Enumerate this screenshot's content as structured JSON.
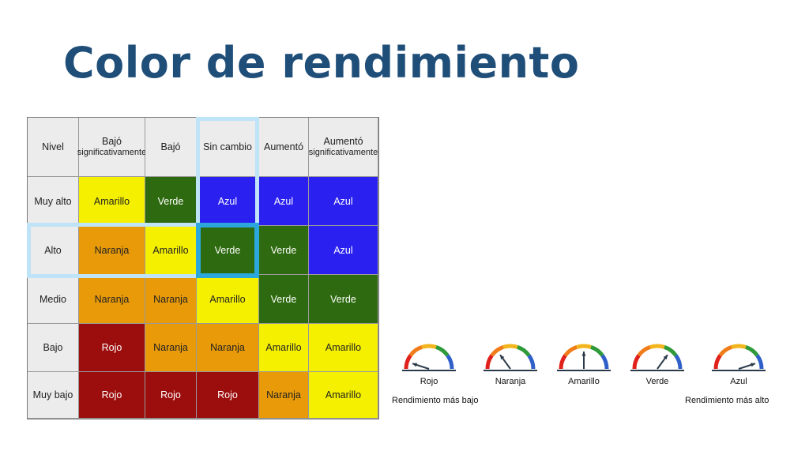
{
  "title": "Color de rendimiento",
  "table": {
    "corner": "Nivel",
    "col_headers": [
      {
        "l1": "Bajó",
        "l2": "significativamente"
      },
      {
        "l1": "Bajó",
        "l2": ""
      },
      {
        "l1": "Sin cambio",
        "l2": ""
      },
      {
        "l1": "Aumentó",
        "l2": ""
      },
      {
        "l1": "Aumentó",
        "l2": "significativamente"
      }
    ],
    "rows": [
      {
        "label": "Muy alto",
        "cells": [
          {
            "text": "Amarillo",
            "color": "yellow"
          },
          {
            "text": "Verde",
            "color": "green"
          },
          {
            "text": "Azul",
            "color": "blue"
          },
          {
            "text": "Azul",
            "color": "blue"
          },
          {
            "text": "Azul",
            "color": "blue"
          }
        ]
      },
      {
        "label": "Alto",
        "cells": [
          {
            "text": "Naranja",
            "color": "orange"
          },
          {
            "text": "Amarillo",
            "color": "yellow"
          },
          {
            "text": "Verde",
            "color": "green"
          },
          {
            "text": "Verde",
            "color": "green"
          },
          {
            "text": "Azul",
            "color": "blue"
          }
        ]
      },
      {
        "label": "Medio",
        "cells": [
          {
            "text": "Naranja",
            "color": "orange"
          },
          {
            "text": "Naranja",
            "color": "orange"
          },
          {
            "text": "Amarillo",
            "color": "yellow"
          },
          {
            "text": "Verde",
            "color": "green"
          },
          {
            "text": "Verde",
            "color": "green"
          }
        ]
      },
      {
        "label": "Bajo",
        "cells": [
          {
            "text": "Rojo",
            "color": "red"
          },
          {
            "text": "Naranja",
            "color": "orange"
          },
          {
            "text": "Naranja",
            "color": "orange"
          },
          {
            "text": "Amarillo",
            "color": "yellow"
          },
          {
            "text": "Amarillo",
            "color": "yellow"
          }
        ]
      },
      {
        "label": "Muy bajo",
        "cells": [
          {
            "text": "Rojo",
            "color": "red"
          },
          {
            "text": "Rojo",
            "color": "red"
          },
          {
            "text": "Rojo",
            "color": "red"
          },
          {
            "text": "Naranja",
            "color": "orange"
          },
          {
            "text": "Amarillo",
            "color": "yellow"
          }
        ]
      }
    ],
    "highlight": {
      "row": 1,
      "col": 2
    }
  },
  "gauges": [
    {
      "label": "Rojo",
      "level": 0.1
    },
    {
      "label": "Naranja",
      "level": 0.3
    },
    {
      "label": "Amarillo",
      "level": 0.5
    },
    {
      "label": "Verde",
      "level": 0.7
    },
    {
      "label": "Azul",
      "level": 0.9
    }
  ],
  "gauge_colors": [
    "#e0201b",
    "#f07d1a",
    "#f3b51b",
    "#2e9a3a",
    "#2f5fc8"
  ],
  "caption_low": "Rendimiento más bajo",
  "caption_high": "Rendimiento más alto"
}
